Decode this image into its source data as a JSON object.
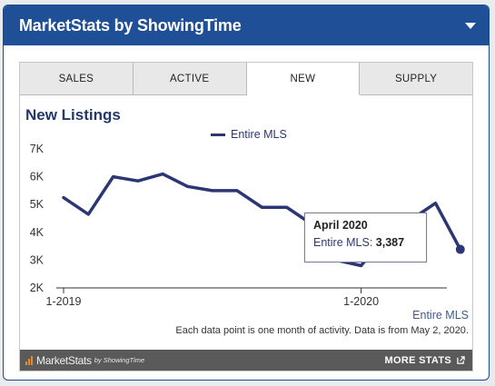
{
  "header": {
    "title": "MarketStats by ShowingTime"
  },
  "tabs": [
    {
      "label": "SALES"
    },
    {
      "label": "ACTIVE"
    },
    {
      "label": "NEW",
      "active": true
    },
    {
      "label": "SUPPLY"
    }
  ],
  "chart_data": {
    "type": "line",
    "title": "New Listings",
    "series": [
      {
        "name": "Entire MLS",
        "color": "#2b3674",
        "values": [
          5250,
          4650,
          6000,
          5850,
          6100,
          5650,
          5500,
          5500,
          4900,
          4900,
          4300,
          3000,
          2800,
          3900,
          4450,
          5050,
          3387
        ]
      }
    ],
    "x_tick_labels": [
      "1-2019",
      "1-2020"
    ],
    "y_ticks": [
      "2K",
      "3K",
      "4K",
      "5K",
      "6K",
      "7K"
    ],
    "ylim": [
      2000,
      7000
    ],
    "grid": false,
    "legend": "top-center"
  },
  "tooltip": {
    "title": "April 2020",
    "series_label": "Entire MLS:",
    "value": "3,387"
  },
  "series_caption": "Entire MLS",
  "footnote": "Each data point is one month of activity. Data is from May 2, 2020.",
  "footer": {
    "brand": "MarketStats",
    "brand_by": "by ShowingTime",
    "more_stats": "MORE STATS"
  }
}
